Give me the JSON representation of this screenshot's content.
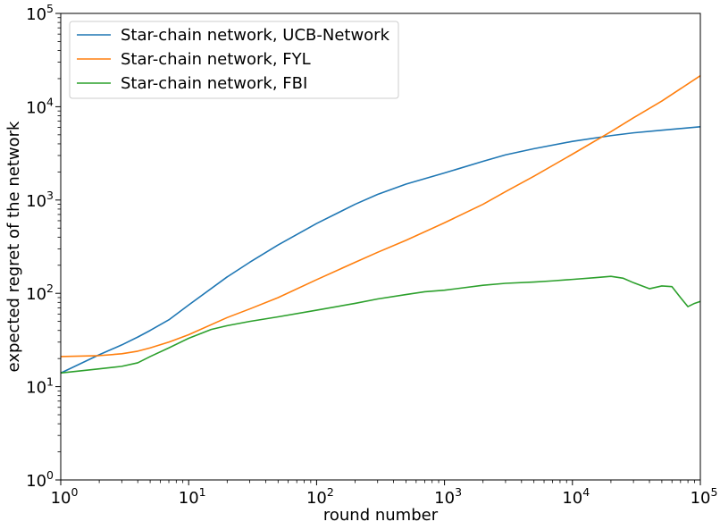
{
  "chart_data": {
    "type": "line",
    "title": "",
    "xlabel": "round number",
    "ylabel": "expected regret of the network",
    "xscale": "log",
    "yscale": "log",
    "xlim": [
      1,
      100000
    ],
    "ylim": [
      1,
      100000
    ],
    "grid": false,
    "legend_position": "top-left",
    "x_tick_labels": [
      {
        "base": "10",
        "exp": "0"
      },
      {
        "base": "10",
        "exp": "1"
      },
      {
        "base": "10",
        "exp": "2"
      },
      {
        "base": "10",
        "exp": "3"
      },
      {
        "base": "10",
        "exp": "4"
      },
      {
        "base": "10",
        "exp": "5"
      }
    ],
    "y_tick_labels": [
      {
        "base": "10",
        "exp": "0"
      },
      {
        "base": "10",
        "exp": "1"
      },
      {
        "base": "10",
        "exp": "2"
      },
      {
        "base": "10",
        "exp": "3"
      },
      {
        "base": "10",
        "exp": "4"
      },
      {
        "base": "10",
        "exp": "5"
      }
    ],
    "series": [
      {
        "name": "Star-chain network, UCB-Network",
        "color": "#1f77b4",
        "x": [
          1,
          2,
          3,
          4,
          5,
          7,
          10,
          20,
          30,
          50,
          100,
          200,
          300,
          500,
          1000,
          2000,
          3000,
          5000,
          10000,
          20000,
          30000,
          50000,
          100000
        ],
        "y": [
          14,
          22,
          28,
          34,
          40,
          52,
          75,
          150,
          215,
          330,
          560,
          900,
          1150,
          1480,
          1950,
          2600,
          3050,
          3550,
          4250,
          4900,
          5250,
          5600,
          6100
        ]
      },
      {
        "name": "Star-chain network, FYL",
        "color": "#ff7f0e",
        "x": [
          1,
          2,
          3,
          4,
          5,
          7,
          10,
          20,
          30,
          50,
          100,
          200,
          300,
          500,
          1000,
          2000,
          3000,
          5000,
          10000,
          20000,
          30000,
          50000,
          100000
        ],
        "y": [
          21,
          21.5,
          22.5,
          24,
          26,
          30,
          36,
          55,
          68,
          90,
          140,
          215,
          275,
          370,
          570,
          900,
          1230,
          1800,
          3100,
          5400,
          7600,
          11500,
          21500
        ]
      },
      {
        "name": "Star-chain network, FBI",
        "color": "#2ca02c",
        "x": [
          1,
          2,
          3,
          4,
          5,
          7,
          10,
          15,
          20,
          30,
          50,
          100,
          200,
          300,
          500,
          700,
          1000,
          2000,
          3000,
          5000,
          7000,
          10000,
          15000,
          20000,
          25000,
          30000,
          40000,
          50000,
          60000,
          70000,
          80000,
          90000,
          100000
        ],
        "y": [
          14,
          15.5,
          16.5,
          18,
          21,
          26,
          33,
          41,
          45,
          50,
          56,
          66,
          78,
          87,
          97,
          104,
          108,
          122,
          128,
          132,
          136,
          141,
          147,
          152,
          145,
          130,
          112,
          120,
          118,
          90,
          72,
          78,
          82
        ]
      }
    ]
  }
}
